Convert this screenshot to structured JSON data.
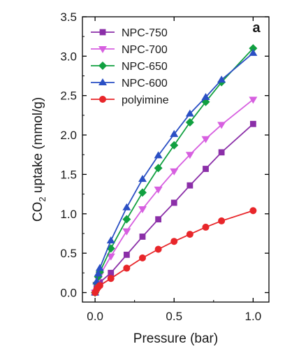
{
  "chart_data": {
    "type": "line",
    "panel_label": "a",
    "xlabel": "Pressure (bar)",
    "ylabel_parts": {
      "pre": "CO",
      "sub": "2",
      "post": " uptake (mmol/g)"
    },
    "xlim": [
      -0.08,
      1.1
    ],
    "ylim": [
      -0.12,
      3.5
    ],
    "x_ticks": [
      0.0,
      0.5,
      1.0
    ],
    "x_tick_labels": [
      "0.0",
      "0.5",
      "1.0"
    ],
    "y_ticks": [
      0.0,
      0.5,
      1.0,
      1.5,
      2.0,
      2.5,
      3.0,
      3.5
    ],
    "y_tick_labels": [
      "0.0",
      "0.5",
      "1.0",
      "1.5",
      "2.0",
      "2.5",
      "3.0",
      "3.5"
    ],
    "legend_position": "top-left",
    "series": [
      {
        "name": "NPC-750",
        "color": "#8b2fa8",
        "marker": "square",
        "x": [
          0.0,
          0.01,
          0.02,
          0.03,
          0.1,
          0.2,
          0.3,
          0.4,
          0.5,
          0.6,
          0.7,
          0.8,
          1.0
        ],
        "y": [
          0.0,
          0.06,
          0.1,
          0.13,
          0.25,
          0.48,
          0.71,
          0.93,
          1.14,
          1.36,
          1.57,
          1.78,
          2.14
        ]
      },
      {
        "name": "NPC-700",
        "color": "#d75fe0",
        "marker": "triangle-down",
        "x": [
          0.0,
          0.01,
          0.02,
          0.03,
          0.1,
          0.2,
          0.3,
          0.4,
          0.5,
          0.6,
          0.7,
          0.8,
          1.0
        ],
        "y": [
          0.0,
          0.1,
          0.17,
          0.22,
          0.46,
          0.78,
          1.06,
          1.31,
          1.54,
          1.75,
          1.95,
          2.13,
          2.45
        ]
      },
      {
        "name": "NPC-650",
        "color": "#11a040",
        "marker": "diamond",
        "x": [
          0.0,
          0.01,
          0.02,
          0.03,
          0.1,
          0.2,
          0.3,
          0.4,
          0.5,
          0.6,
          0.7,
          0.8,
          1.0
        ],
        "y": [
          0.0,
          0.12,
          0.2,
          0.26,
          0.56,
          0.93,
          1.27,
          1.58,
          1.87,
          2.16,
          2.42,
          2.67,
          3.1
        ]
      },
      {
        "name": "NPC-600",
        "color": "#2a4fc4",
        "marker": "triangle-up",
        "x": [
          0.0,
          0.01,
          0.02,
          0.03,
          0.1,
          0.2,
          0.3,
          0.4,
          0.5,
          0.6,
          0.7,
          0.8,
          1.0
        ],
        "y": [
          0.0,
          0.14,
          0.24,
          0.31,
          0.66,
          1.08,
          1.44,
          1.74,
          2.01,
          2.27,
          2.48,
          2.7,
          3.04
        ]
      },
      {
        "name": "polyimine",
        "color": "#e8262a",
        "marker": "circle",
        "x": [
          0.0,
          0.01,
          0.02,
          0.03,
          0.1,
          0.2,
          0.3,
          0.4,
          0.5,
          0.6,
          0.7,
          0.8,
          1.0
        ],
        "y": [
          0.0,
          0.04,
          0.07,
          0.09,
          0.18,
          0.31,
          0.44,
          0.55,
          0.65,
          0.74,
          0.83,
          0.91,
          1.04
        ]
      }
    ]
  }
}
